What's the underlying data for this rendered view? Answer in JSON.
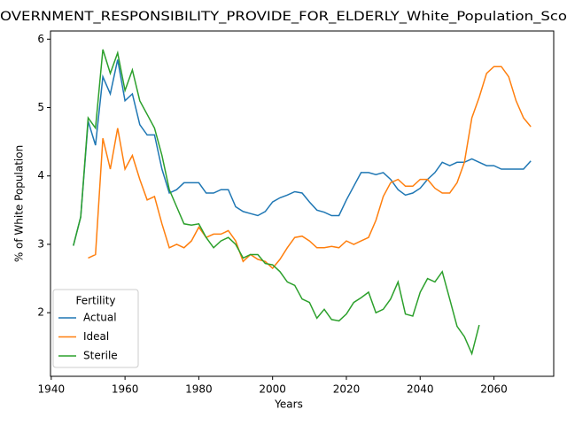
{
  "chart_data": {
    "type": "line",
    "title": "OVERNMENT_RESPONSIBILITY_PROVIDE_FOR_ELDERLY_White_Population_Sco",
    "xlabel": "Years",
    "ylabel": "% of White Population",
    "legend_title": "Fertility",
    "legend": "lower left",
    "grid": false,
    "x": [
      1946,
      1948,
      1950,
      1952,
      1954,
      1956,
      1958,
      1960,
      1962,
      1964,
      1966,
      1968,
      1970,
      1972,
      1974,
      1976,
      1978,
      1980,
      1982,
      1984,
      1986,
      1988,
      1990,
      1992,
      1994,
      1996,
      1998,
      2000,
      2002,
      2004,
      2006,
      2008,
      2010,
      2012,
      2014,
      2016,
      2018,
      2020,
      2022,
      2024,
      2026,
      2028,
      2030,
      2032,
      2034,
      2036,
      2038,
      2040,
      2042,
      2044,
      2046,
      2048,
      2050,
      2052,
      2054,
      2056,
      2058,
      2060,
      2062,
      2064,
      2066,
      2068,
      2070
    ],
    "series": [
      {
        "name": "Actual",
        "color": "#1f77b4",
        "values": [
          2.98,
          3.4,
          4.8,
          4.45,
          5.45,
          5.2,
          5.7,
          5.1,
          5.2,
          4.75,
          4.6,
          4.6,
          4.1,
          3.75,
          3.8,
          3.9,
          3.9,
          3.9,
          3.75,
          3.75,
          3.8,
          3.8,
          3.55,
          3.48,
          3.45,
          3.42,
          3.48,
          3.62,
          3.68,
          3.72,
          3.77,
          3.75,
          3.62,
          3.5,
          3.47,
          3.42,
          3.42,
          3.65,
          3.85,
          4.05,
          4.05,
          4.02,
          4.05,
          3.95,
          3.8,
          3.72,
          3.75,
          3.82,
          3.95,
          4.05,
          4.2,
          4.15,
          4.2,
          4.2,
          4.25,
          4.2,
          4.15,
          4.15,
          4.1,
          4.1,
          4.1,
          4.1,
          4.22
        ]
      },
      {
        "name": "Ideal",
        "color": "#ff7f0e",
        "values": [
          null,
          null,
          2.8,
          2.85,
          4.55,
          4.1,
          4.7,
          4.1,
          4.3,
          3.95,
          3.65,
          3.7,
          3.3,
          2.95,
          3.0,
          2.95,
          3.05,
          3.25,
          3.1,
          3.15,
          3.15,
          3.2,
          3.05,
          2.75,
          2.85,
          2.78,
          2.75,
          2.65,
          2.78,
          2.95,
          3.1,
          3.12,
          3.05,
          2.95,
          2.95,
          2.97,
          2.95,
          3.05,
          3.0,
          3.05,
          3.1,
          3.35,
          3.7,
          3.9,
          3.95,
          3.85,
          3.85,
          3.95,
          3.95,
          3.82,
          3.75,
          3.75,
          3.9,
          4.2,
          4.85,
          5.15,
          5.5,
          5.6,
          5.6,
          5.45,
          5.1,
          4.85,
          4.72
        ]
      },
      {
        "name": "Sterile",
        "color": "#2ca02c",
        "values": [
          2.98,
          3.4,
          4.85,
          4.7,
          5.85,
          5.5,
          5.8,
          5.25,
          5.55,
          5.1,
          4.9,
          4.7,
          4.3,
          3.8,
          3.55,
          3.3,
          3.28,
          3.3,
          3.1,
          2.95,
          3.05,
          3.1,
          3.0,
          2.8,
          2.85,
          2.85,
          2.72,
          2.7,
          2.6,
          2.45,
          2.4,
          2.2,
          2.15,
          1.92,
          2.05,
          1.9,
          1.88,
          1.98,
          2.15,
          2.22,
          2.3,
          2.0,
          2.05,
          2.2,
          2.45,
          1.98,
          1.95,
          2.3,
          2.5,
          2.45,
          2.6,
          2.2,
          1.8,
          1.65,
          1.4,
          1.82,
          null,
          null,
          null,
          null,
          null,
          null,
          null
        ]
      }
    ],
    "xlim": [
      1939.8,
      2076.2
    ],
    "xticks": [
      1940,
      1960,
      1980,
      2000,
      2020,
      2040,
      2060
    ],
    "ylim": [
      1.07,
      6.12
    ],
    "yticks": [
      2,
      3,
      4,
      5,
      6
    ]
  }
}
